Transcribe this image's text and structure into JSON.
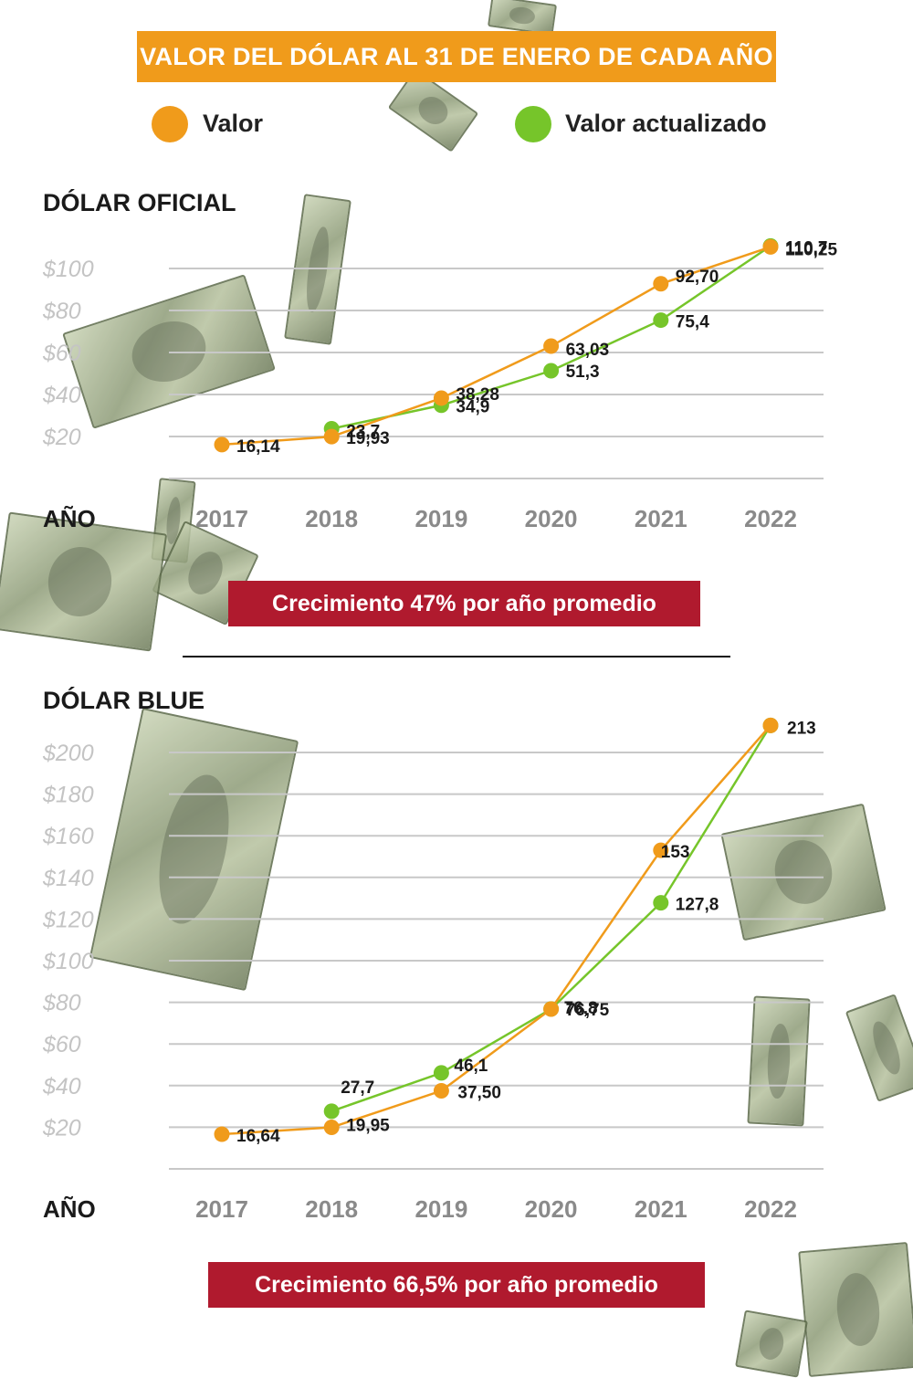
{
  "title": "VALOR DEL DÓLAR AL 31 DE ENERO DE CADA AÑO",
  "legend": [
    {
      "label": "Valor",
      "color": "#f09b1b"
    },
    {
      "label": "Valor actualizado",
      "color": "#76c52a"
    }
  ],
  "colors": {
    "valor": "#f09b1b",
    "actualizado": "#76c52a",
    "banner": "#f09b1b",
    "growth_box": "#b01a2e"
  },
  "decorations": {
    "background_image": "falling dollar bills",
    "icon": "dollar-bill-icon"
  },
  "chart_data": [
    {
      "type": "line",
      "title": "DÓLAR OFICIAL",
      "xlabel": "AÑO",
      "x": [
        2017,
        2018,
        2019,
        2020,
        2021,
        2022
      ],
      "y_ticks": [
        "$20",
        "$40",
        "$60",
        "$80",
        "$100"
      ],
      "ylim": [
        0,
        120
      ],
      "grid": true,
      "series": [
        {
          "name": "Valor",
          "color": "#f09b1b",
          "values": [
            16.14,
            19.93,
            38.28,
            63.03,
            92.7,
            110.25
          ],
          "labels": [
            "16,14",
            "19,93",
            "38,28",
            "63,03",
            "92,70",
            "110,25"
          ]
        },
        {
          "name": "Valor actualizado",
          "color": "#76c52a",
          "x": [
            2018,
            2019,
            2020,
            2021,
            2022
          ],
          "values": [
            23.7,
            34.9,
            51.3,
            75.4,
            110.7
          ],
          "labels": [
            "23,7",
            "34,9",
            "51,3",
            "75,4",
            "110,7"
          ]
        }
      ],
      "growth_note": "Crecimiento 47% por año promedio"
    },
    {
      "type": "line",
      "title": "DÓLAR BLUE",
      "xlabel": "AÑO",
      "x": [
        2017,
        2018,
        2019,
        2020,
        2021,
        2022
      ],
      "y_ticks": [
        "$20",
        "$40",
        "$60",
        "$80",
        "$100",
        "$120",
        "$140",
        "$160",
        "$180",
        "$200"
      ],
      "ylim": [
        0,
        220
      ],
      "grid": true,
      "series": [
        {
          "name": "Valor",
          "color": "#f09b1b",
          "values": [
            16.64,
            19.95,
            37.5,
            76.75,
            153,
            213
          ],
          "labels": [
            "16,64",
            "19,95",
            "37,50",
            "76,75",
            "153",
            "213"
          ]
        },
        {
          "name": "Valor actualizado",
          "color": "#76c52a",
          "x": [
            2018,
            2019,
            2020,
            2021,
            2022
          ],
          "values": [
            27.7,
            46.1,
            76.8,
            127.8,
            213
          ],
          "labels": [
            "27,7",
            "46,1",
            "76,8",
            "127,8",
            ""
          ]
        }
      ],
      "growth_note": "Crecimiento 66,5% por año promedio"
    }
  ]
}
